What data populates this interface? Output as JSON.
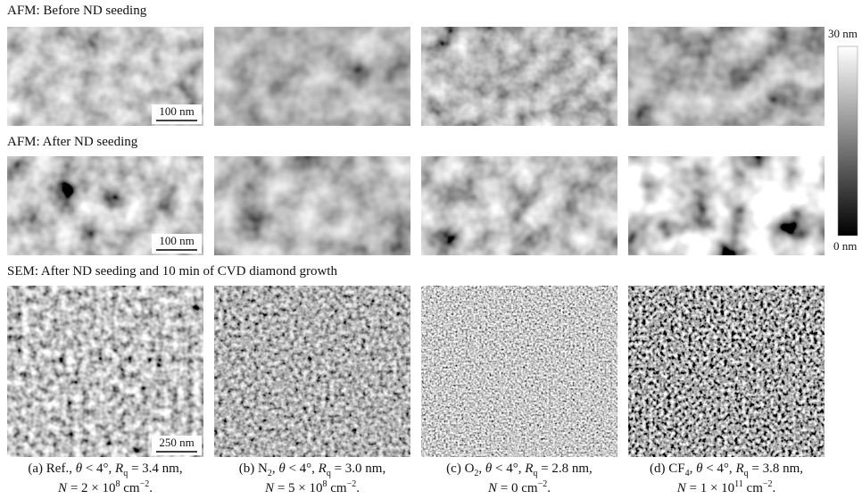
{
  "rows": [
    {
      "label": "AFM: Before ND seeding",
      "scale_bar": "100 nm"
    },
    {
      "label": "AFM: After ND seeding",
      "scale_bar": "100 nm"
    },
    {
      "label": "SEM: After ND seeding and 10 min of CVD diamond growth",
      "scale_bar": "250 nm"
    }
  ],
  "colorbar": {
    "max_label": "30 nm",
    "min_label": "0 nm"
  },
  "captions": [
    {
      "line1": [
        {
          "text": "(a) Ref., "
        },
        {
          "italic": "θ"
        },
        {
          "text": " < 4°, "
        },
        {
          "italic": "R"
        },
        {
          "sub": "q"
        },
        {
          "text": " = 3.4 nm,"
        }
      ],
      "line2": [
        {
          "italic": "N"
        },
        {
          "text": " = 2 × 10"
        },
        {
          "sup": "8"
        },
        {
          "text": " cm"
        },
        {
          "sup": "−2"
        },
        {
          "text": "."
        }
      ]
    },
    {
      "line1": [
        {
          "text": "(b) N"
        },
        {
          "sub": "2"
        },
        {
          "text": ", "
        },
        {
          "italic": "θ"
        },
        {
          "text": " < 4°, "
        },
        {
          "italic": "R"
        },
        {
          "sub": "q"
        },
        {
          "text": " = 3.0 nm,"
        }
      ],
      "line2": [
        {
          "italic": "N"
        },
        {
          "text": " = 5 × 10"
        },
        {
          "sup": "8"
        },
        {
          "text": " cm"
        },
        {
          "sup": "−2"
        },
        {
          "text": "."
        }
      ]
    },
    {
      "line1": [
        {
          "text": "(c) O"
        },
        {
          "sub": "2"
        },
        {
          "text": ", "
        },
        {
          "italic": "θ"
        },
        {
          "text": " < 4°, "
        },
        {
          "italic": "R"
        },
        {
          "sub": "q"
        },
        {
          "text": " = 2.8 nm,"
        }
      ],
      "line2": [
        {
          "italic": "N"
        },
        {
          "text": " = 0 cm"
        },
        {
          "sup": "−2"
        },
        {
          "text": "."
        }
      ]
    },
    {
      "line1": [
        {
          "text": "(d) CF"
        },
        {
          "sub": "4"
        },
        {
          "text": ", "
        },
        {
          "italic": "θ"
        },
        {
          "text": " < 4°, "
        },
        {
          "italic": "R"
        },
        {
          "sub": "q"
        },
        {
          "text": " = 3.8 nm,"
        }
      ],
      "line2": [
        {
          "italic": "N"
        },
        {
          "text": " = 1 × 10"
        },
        {
          "sup": "11"
        },
        {
          "text": " cm"
        },
        {
          "sup": "−2"
        },
        {
          "text": "."
        }
      ]
    }
  ]
}
